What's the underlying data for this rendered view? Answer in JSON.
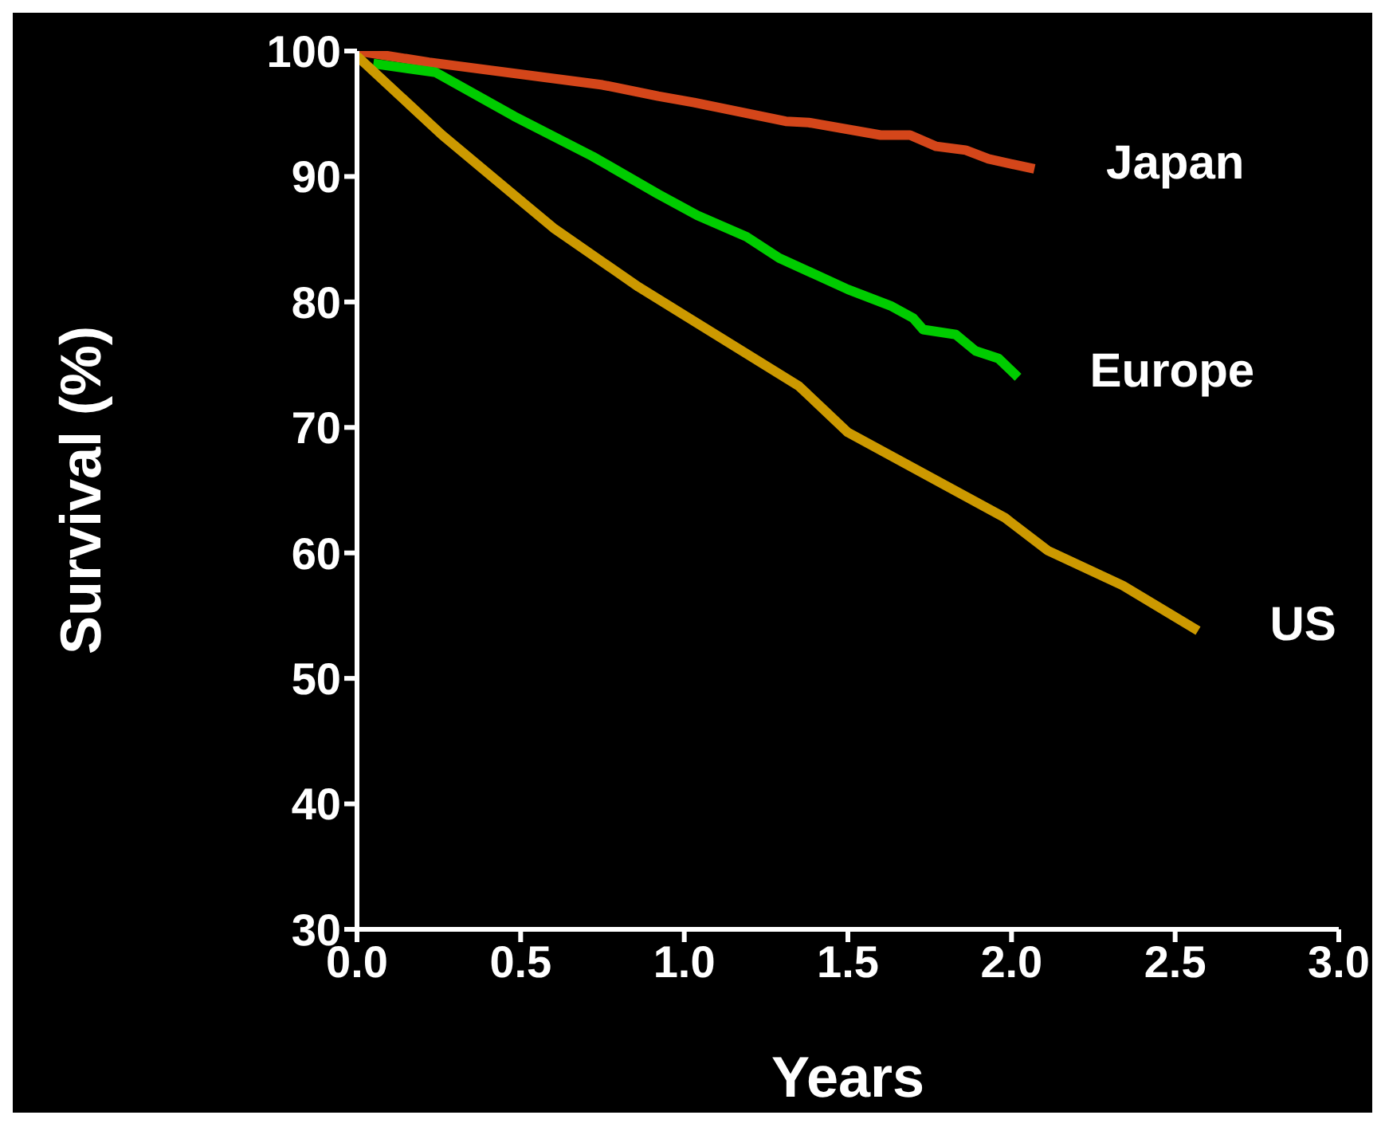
{
  "chart_data": {
    "type": "line",
    "xlabel": "Years",
    "ylabel": "Survival (%)",
    "xlim": [
      0,
      3
    ],
    "ylim": [
      30,
      100
    ],
    "xticks": [
      {
        "value": 0,
        "label": "0.0"
      },
      {
        "value": 0.5,
        "label": "0.5"
      },
      {
        "value": 1,
        "label": "1.0"
      },
      {
        "value": 1.5,
        "label": "1.5"
      },
      {
        "value": 2,
        "label": "2.0"
      },
      {
        "value": 2.5,
        "label": "2.5"
      },
      {
        "value": 3,
        "label": "3.0"
      }
    ],
    "yticks": [
      30,
      40,
      50,
      60,
      70,
      80,
      90,
      100
    ],
    "grid": false,
    "legend": false,
    "marker": "none",
    "line_style": "solid",
    "series": [
      {
        "name": "Japan",
        "color": "#d4461a",
        "x": [
          0,
          0.22,
          0.75,
          0.92,
          1.03,
          1.31,
          1.38,
          1.6,
          1.69,
          1.77,
          1.86,
          1.93,
          2.07
        ],
        "values": [
          100,
          99.1,
          97.3,
          96.4,
          95.9,
          94.4,
          94.3,
          93.3,
          93.3,
          92.4,
          92.1,
          91.4,
          90.6
        ]
      },
      {
        "name": "Europe",
        "color": "#00cc00",
        "x": [
          0.05,
          0.24,
          0.48,
          0.72,
          0.92,
          1.04,
          1.19,
          1.29,
          1.5,
          1.63,
          1.7,
          1.73,
          1.83,
          1.89,
          1.96,
          2.02
        ],
        "values": [
          99,
          98.3,
          94.8,
          91.6,
          88.6,
          86.9,
          85.2,
          83.5,
          81,
          79.7,
          78.7,
          77.8,
          77.4,
          76.1,
          75.5,
          74
        ]
      },
      {
        "name": "US",
        "color": "#cc9900",
        "x": [
          0,
          0.26,
          0.6,
          0.86,
          1.35,
          1.5,
          1.98,
          2.11,
          2.34,
          2.57
        ],
        "values": [
          99.6,
          93.3,
          85.9,
          81.2,
          73.3,
          69.6,
          62.8,
          60.2,
          57.4,
          53.8
        ]
      }
    ]
  }
}
